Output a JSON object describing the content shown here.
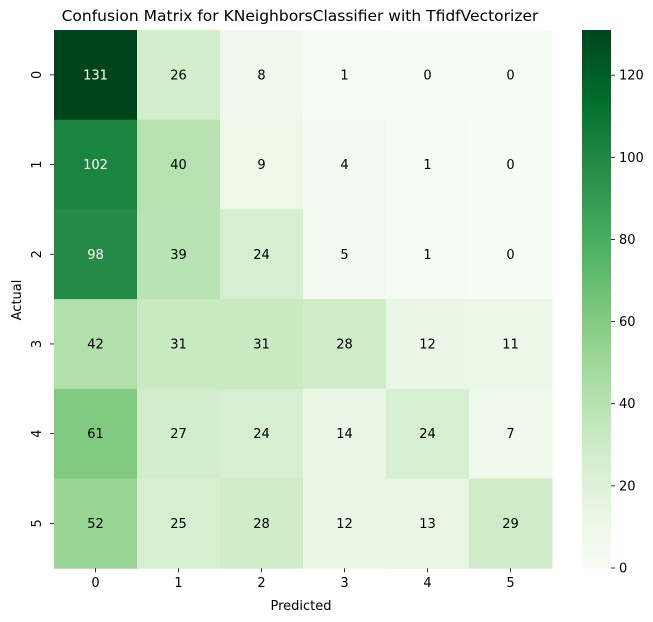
{
  "chart_data": {
    "type": "heatmap",
    "title": "Confusion Matrix for KNeighborsClassifier with TfidfVectorizer",
    "xlabel": "Predicted",
    "ylabel": "Actual",
    "x_categories": [
      "0",
      "1",
      "2",
      "3",
      "4",
      "5"
    ],
    "y_categories": [
      "0",
      "1",
      "2",
      "3",
      "4",
      "5"
    ],
    "values": [
      [
        131,
        26,
        8,
        1,
        0,
        0
      ],
      [
        102,
        40,
        9,
        4,
        1,
        0
      ],
      [
        98,
        39,
        24,
        5,
        1,
        0
      ],
      [
        42,
        31,
        31,
        28,
        12,
        11
      ],
      [
        61,
        27,
        24,
        14,
        24,
        7
      ],
      [
        52,
        25,
        28,
        12,
        13,
        29
      ]
    ],
    "colormap": "Greens",
    "colorbar": {
      "range": [
        0,
        131
      ],
      "ticks": [
        0,
        20,
        40,
        60,
        80,
        100,
        120
      ],
      "tick_labels": [
        "0",
        "20",
        "40",
        "60",
        "80",
        "100",
        "120"
      ]
    }
  }
}
